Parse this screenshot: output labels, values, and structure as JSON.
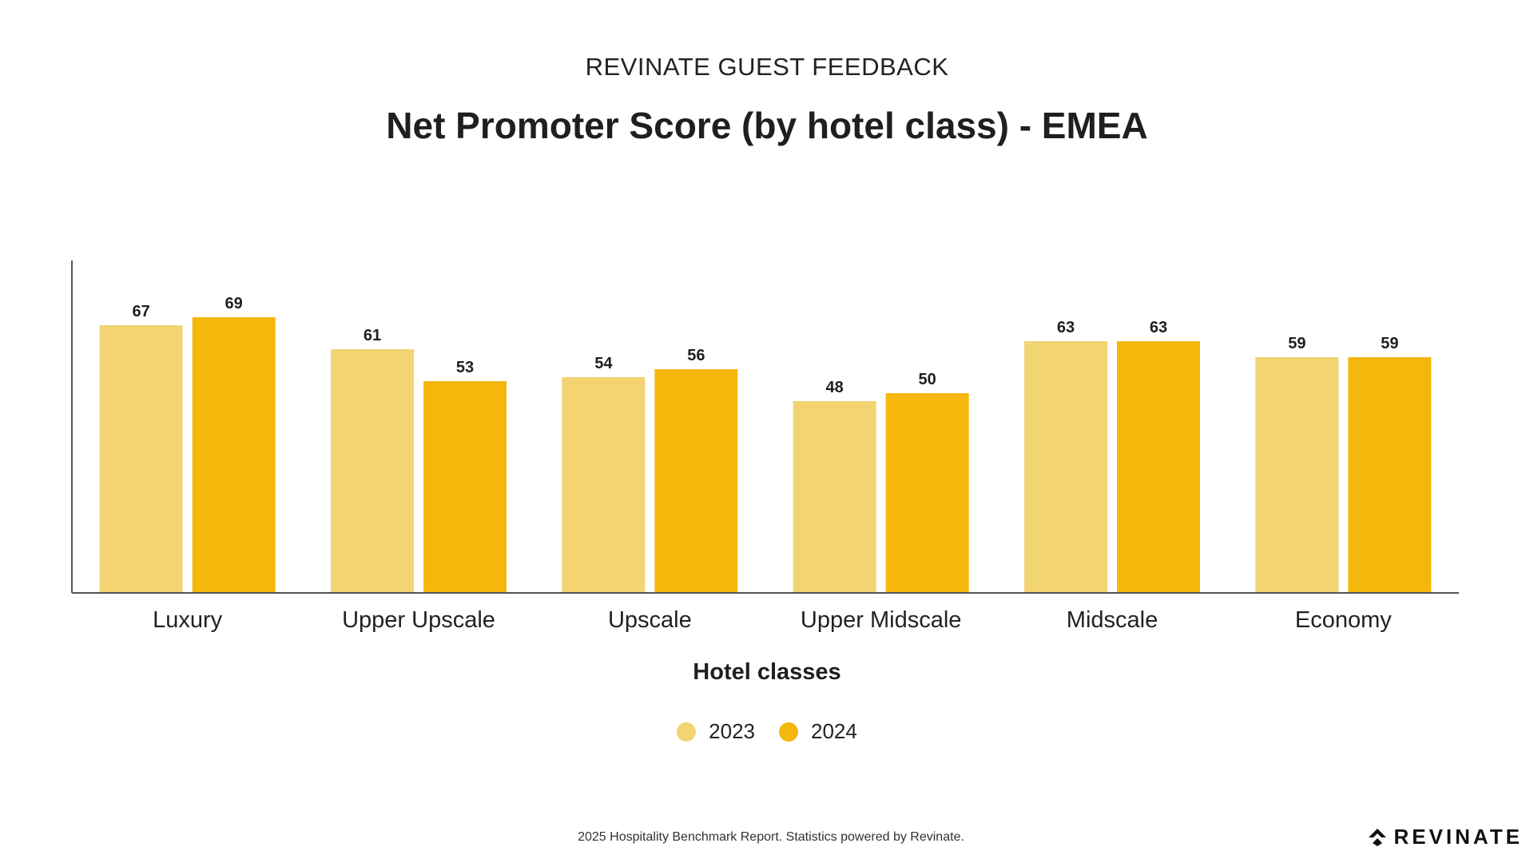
{
  "header": {
    "supertitle": "REVINATE GUEST FEEDBACK",
    "title": "Net Promoter Score (by hotel class) - EMEA"
  },
  "chart_data": {
    "type": "bar",
    "categories": [
      "Luxury",
      "Upper Upscale",
      "Upscale",
      "Upper Midscale",
      "Midscale",
      "Economy"
    ],
    "series": [
      {
        "name": "2023",
        "values": [
          67,
          61,
          54,
          48,
          63,
          59
        ],
        "color": "#F2D472"
      },
      {
        "name": "2024",
        "values": [
          69,
          53,
          56,
          50,
          63,
          59
        ],
        "color": "#F6B70D"
      }
    ],
    "xlabel": "Hotel classes",
    "ylabel": "",
    "ylim": [
      0,
      79
    ],
    "grid": false,
    "legend_position": "bottom-center"
  },
  "legend": {
    "items": [
      {
        "label": "2023",
        "color": "#F2D472"
      },
      {
        "label": "2024",
        "color": "#F6B70D"
      }
    ]
  },
  "footer": {
    "text": "2025 Hospitality Benchmark Report. Statistics powered by Revinate.",
    "logo_text": "REVINATE",
    "logo_icon": "revinate-logo-icon"
  }
}
